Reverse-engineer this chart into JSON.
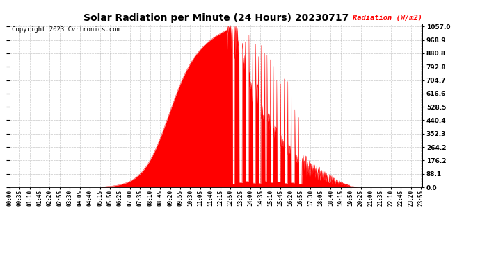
{
  "title": "Solar Radiation per Minute (24 Hours) 20230717",
  "ylabel": "Radiation (W/m2)",
  "copyright": "Copyright 2023 Cvrtronics.com",
  "yticks": [
    0.0,
    88.1,
    176.2,
    264.2,
    352.3,
    440.4,
    528.5,
    616.6,
    704.7,
    792.8,
    880.8,
    968.9,
    1057.0
  ],
  "ymax": 1057.0,
  "ymin": 0.0,
  "bg_color": "#ffffff",
  "plot_bg_color": "#ffffff",
  "fill_color": "#ff0000",
  "line_color": "#ff0000",
  "grid_color": "#bbbbbb",
  "title_color": "#000000",
  "ylabel_color": "#ff0000",
  "copyright_color": "#000000",
  "dashed_zero_color": "#ff0000",
  "total_minutes": 1440,
  "sunrise_minute": 318,
  "sunset_minute": 1218,
  "peak_minute": 775,
  "peak_value": 1057.0,
  "noise_seed": 7
}
